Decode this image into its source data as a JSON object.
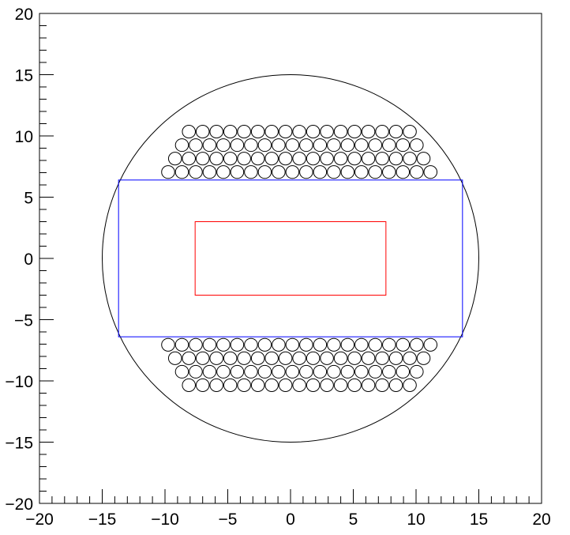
{
  "chart_data": {
    "type": "scatter",
    "title": "",
    "xlabel": "",
    "ylabel": "",
    "xlim": [
      -20,
      20
    ],
    "ylim": [
      -20,
      20
    ],
    "grid": false,
    "x_major_ticks": [
      -20,
      -15,
      -10,
      -5,
      0,
      5,
      10,
      15,
      20
    ],
    "y_major_ticks": [
      -20,
      -15,
      -10,
      -5,
      0,
      5,
      10,
      15,
      20
    ],
    "x_tick_labels": [
      "−20",
      "−15",
      "−10",
      "−5",
      "0",
      "5",
      "10",
      "15",
      "20"
    ],
    "y_tick_labels": [
      "−20",
      "−15",
      "−10",
      "−5",
      "0",
      "5",
      "10",
      "15",
      "20"
    ],
    "minor_tick_step": 1,
    "outer_circle": {
      "cx": 0,
      "cy": 0,
      "r": 15,
      "color": "#000000"
    },
    "blue_rectangle": {
      "x1": -13.7,
      "y1": -6.4,
      "x2": 13.7,
      "y2": 6.4,
      "color": "#0000ff"
    },
    "red_rectangle": {
      "x1": -7.6,
      "y1": -3.0,
      "x2": 7.6,
      "y2": 3.0,
      "color": "#ff0000"
    },
    "small_circle_radius": 0.52,
    "small_circle_color": "#000000",
    "hole_rows": [
      {
        "y": 10.35,
        "x_start": -8.1,
        "count": 17,
        "step": 1.1
      },
      {
        "y": 9.25,
        "x_start": -8.65,
        "count": 18,
        "step": 1.1
      },
      {
        "y": 8.15,
        "x_start": -9.2,
        "count": 19,
        "step": 1.1
      },
      {
        "y": 7.05,
        "x_start": -9.75,
        "count": 20,
        "step": 1.1
      },
      {
        "y": -7.05,
        "x_start": -9.75,
        "count": 20,
        "step": 1.1
      },
      {
        "y": -8.15,
        "x_start": -9.2,
        "count": 19,
        "step": 1.1
      },
      {
        "y": -9.25,
        "x_start": -8.65,
        "count": 18,
        "step": 1.1
      },
      {
        "y": -10.35,
        "x_start": -8.1,
        "count": 17,
        "step": 1.1
      }
    ]
  }
}
